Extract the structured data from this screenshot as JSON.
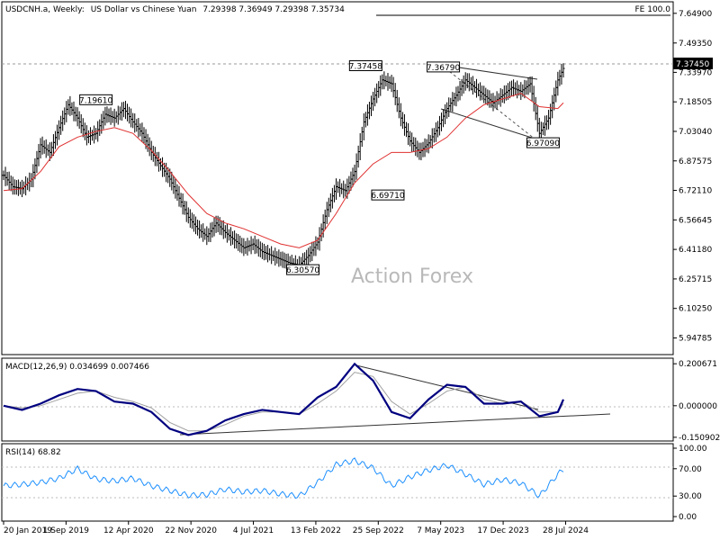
{
  "header": {
    "symbol": "USDCNH.a, Weekly:",
    "description": "US Dollar vs Chinese Yuan",
    "ohlc": "7.29398 7.36949 7.29398 7.35734",
    "fe_label": "FE 100.0"
  },
  "watermark": "Action Forex",
  "current_price_label": "7.37450",
  "colors": {
    "background": "#ffffff",
    "frame": "#000000",
    "bars": "#000000",
    "moving_average": "#e03030",
    "macd_line": "#000080",
    "macd_signal": "#a0a0a0",
    "rsi_line": "#1e90ff",
    "grid_dashed": "#9a9a9a"
  },
  "chart_data": [
    {
      "type": "line",
      "title": "USDCNH.a, Weekly: US Dollar vs Chinese Yuan",
      "ylim": [
        5.87,
        7.7
      ],
      "yticks": [
        "7.64900",
        "7.49350",
        "7.33970",
        "7.18505",
        "7.03040",
        "6.87575",
        "6.72110",
        "6.56645",
        "6.41180",
        "6.25715",
        "6.10250",
        "5.94785"
      ],
      "x_tick_labels": [
        "20 Jan 2019",
        "1 Sep 2019",
        "12 Apr 2020",
        "22 Nov 2020",
        "4 Jul 2021",
        "13 Feb 2022",
        "25 Sep 2022",
        "7 May 2023",
        "17 Dec 2023",
        "28 Jul 2024"
      ],
      "series": [
        {
          "x": [
            0,
            5,
            10,
            15,
            20,
            25,
            30,
            35,
            40,
            45,
            50,
            55,
            60,
            65,
            70,
            75,
            80,
            85,
            90,
            95,
            100,
            105,
            110,
            115,
            120,
            125,
            130,
            135,
            140,
            145,
            150,
            155,
            160,
            165,
            170,
            175,
            180,
            185,
            190,
            195,
            200,
            205,
            210,
            215,
            220,
            225,
            230,
            235,
            240,
            245,
            250,
            255,
            260,
            265,
            270,
            275,
            280,
            285,
            290,
            295,
            300,
            303
          ],
          "values": [
            6.8,
            6.74,
            6.73,
            6.78,
            6.96,
            6.92,
            7.05,
            7.17,
            7.1,
            7.0,
            7.02,
            7.12,
            7.1,
            7.15,
            7.08,
            7.02,
            6.92,
            6.85,
            6.78,
            6.68,
            6.58,
            6.52,
            6.48,
            6.55,
            6.5,
            6.46,
            6.42,
            6.44,
            6.4,
            6.38,
            6.36,
            6.34,
            6.33,
            6.38,
            6.45,
            6.62,
            6.74,
            6.72,
            6.82,
            7.08,
            7.2,
            7.3,
            7.28,
            7.1,
            6.98,
            6.92,
            6.97,
            7.05,
            7.15,
            7.22,
            7.3,
            7.26,
            7.22,
            7.18,
            7.22,
            7.26,
            7.24,
            7.28,
            7.02,
            7.1,
            7.3,
            7.36
          ]
        },
        {
          "x": [
            0,
            10,
            20,
            30,
            40,
            50,
            60,
            70,
            80,
            90,
            100,
            110,
            120,
            130,
            140,
            150,
            160,
            170,
            180,
            190,
            200,
            210,
            220,
            230,
            240,
            250,
            260,
            270,
            280,
            290,
            300,
            303
          ],
          "values": [
            6.72,
            6.73,
            6.82,
            6.95,
            7.0,
            7.03,
            7.05,
            7.02,
            6.93,
            6.82,
            6.7,
            6.6,
            6.55,
            6.52,
            6.48,
            6.44,
            6.42,
            6.46,
            6.6,
            6.76,
            6.86,
            6.92,
            6.92,
            6.94,
            7.0,
            7.1,
            7.17,
            7.2,
            7.23,
            7.16,
            7.15,
            7.18
          ]
        }
      ],
      "annotations": [
        {
          "x": 50,
          "y": 7.1961,
          "text": "7.19610"
        },
        {
          "x": 162,
          "y": 6.3057,
          "text": "6.30570"
        },
        {
          "x": 196,
          "y": 7.37458,
          "text": "7.37458"
        },
        {
          "x": 208,
          "y": 6.6971,
          "text": "6.69710"
        },
        {
          "x": 238,
          "y": 7.3679,
          "text": "7.36790"
        },
        {
          "x": 292,
          "y": 6.9709,
          "text": "6.97090"
        }
      ]
    },
    {
      "type": "line",
      "title": "MACD(12,26,9) 0.034699 0.007466",
      "ylim": [
        -0.16,
        0.21
      ],
      "yticks": [
        "0.200671",
        "0.000000",
        "-0.150902"
      ],
      "series": [
        {
          "x": [
            0,
            10,
            20,
            30,
            40,
            50,
            60,
            70,
            80,
            90,
            100,
            110,
            120,
            130,
            140,
            150,
            160,
            170,
            180,
            190,
            200,
            210,
            220,
            230,
            240,
            250,
            260,
            270,
            280,
            290,
            300,
            303
          ],
          "values": [
            0.0,
            -0.02,
            0.01,
            0.05,
            0.08,
            0.07,
            0.02,
            0.01,
            -0.03,
            -0.11,
            -0.14,
            -0.12,
            -0.07,
            -0.04,
            -0.02,
            -0.03,
            -0.04,
            0.04,
            0.09,
            0.2,
            0.12,
            -0.03,
            -0.06,
            0.03,
            0.1,
            0.09,
            0.01,
            0.01,
            0.02,
            -0.05,
            -0.03,
            0.03
          ]
        },
        {
          "x": [
            0,
            10,
            20,
            30,
            40,
            50,
            60,
            70,
            80,
            90,
            100,
            110,
            120,
            130,
            140,
            150,
            160,
            170,
            180,
            190,
            200,
            210,
            220,
            230,
            240,
            250,
            260,
            270,
            280,
            290,
            300,
            303
          ],
          "values": [
            0.0,
            -0.01,
            0.0,
            0.03,
            0.06,
            0.07,
            0.04,
            0.02,
            -0.01,
            -0.08,
            -0.12,
            -0.12,
            -0.09,
            -0.05,
            -0.03,
            -0.03,
            -0.04,
            0.01,
            0.07,
            0.16,
            0.14,
            0.02,
            -0.04,
            0.01,
            0.07,
            0.09,
            0.03,
            0.01,
            0.02,
            -0.03,
            -0.03,
            0.01
          ]
        }
      ]
    },
    {
      "type": "line",
      "title": "RSI(14) 68.82",
      "ylim": [
        0,
        100
      ],
      "yticks": [
        "100.00",
        "70.00",
        "30.00",
        "0.00"
      ],
      "series": [
        {
          "x": [
            0,
            10,
            20,
            30,
            40,
            50,
            60,
            70,
            80,
            90,
            100,
            110,
            120,
            130,
            140,
            150,
            160,
            170,
            180,
            190,
            200,
            210,
            220,
            230,
            240,
            250,
            260,
            270,
            280,
            290,
            300,
            303
          ],
          "values": [
            45,
            47,
            50,
            56,
            70,
            55,
            52,
            56,
            45,
            38,
            31,
            32,
            40,
            36,
            38,
            33,
            30,
            50,
            76,
            82,
            71,
            45,
            58,
            68,
            75,
            62,
            47,
            54,
            49,
            30,
            62,
            69
          ]
        }
      ]
    }
  ]
}
